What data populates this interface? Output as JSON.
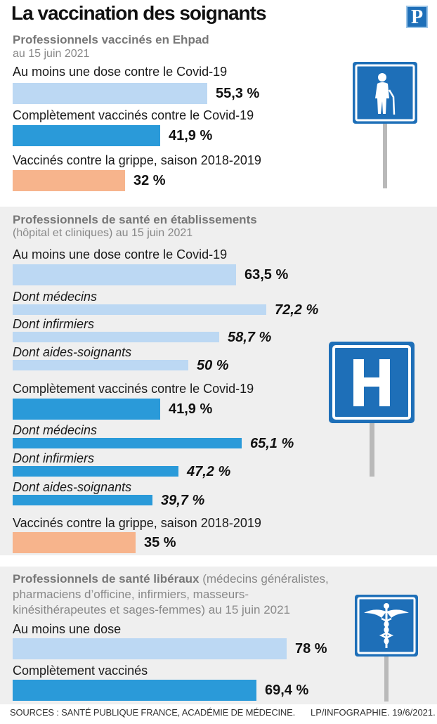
{
  "title": "La vaccination des soignants",
  "logo": "P",
  "colors": {
    "light": "#bcd8f3",
    "dark": "#2a9ad9",
    "orange": "#f7b48c",
    "sign": "#1e6fb8"
  },
  "sections": {
    "ehpad": {
      "title": "Professionnels vaccinés en Ehpad",
      "subtitle": "au 15 juin 2021",
      "icon": "elderly-person-sign-icon",
      "rows": [
        {
          "label": "Au moins une dose contre le Covid-19",
          "value": 55.3,
          "display": "55,3 %"
        },
        {
          "label": "Complètement vaccinés contre le Covid-19",
          "value": 41.9,
          "display": "41,9 %"
        },
        {
          "label": "Vaccinés contre la grippe, saison 2018-2019",
          "value": 32,
          "display": "32 %"
        }
      ]
    },
    "etablissements": {
      "title": "Professionnels de santé en établissements",
      "subtitle": "(hôpital et cliniques) au 15 juin 2021",
      "icon": "hospital-sign-icon",
      "rows": [
        {
          "label": "Au moins une dose contre le Covid-19",
          "value": 63.5,
          "display": "63,5 %"
        },
        {
          "label": "Dont médecins",
          "value": 72.2,
          "display": "72,2 %"
        },
        {
          "label": "Dont infirmiers",
          "value": 58.7,
          "display": "58,7 %"
        },
        {
          "label": "Dont aides-soignants",
          "value": 50,
          "display": "50 %"
        },
        {
          "label": "Complètement vaccinés contre le Covid-19",
          "value": 41.9,
          "display": "41,9 %"
        },
        {
          "label": "Dont médecins",
          "value": 65.1,
          "display": "65,1 %"
        },
        {
          "label": "Dont infirmiers",
          "value": 47.2,
          "display": "47,2 %"
        },
        {
          "label": "Dont aides-soignants",
          "value": 39.7,
          "display": "39,7 %"
        },
        {
          "label": "Vaccinés contre la grippe, saison 2018-2019",
          "value": 35,
          "display": "35 %"
        }
      ]
    },
    "liberaux": {
      "title_bold": "Professionnels de santé libéraux",
      "title_rest": "(médecins généralistes,",
      "line2": "pharmaciens d’officine, infirmiers, masseurs-",
      "line3": "kinésithérapeutes et sages-femmes) au 15 juin 2021",
      "icon": "caduceus-sign-icon",
      "rows": [
        {
          "label": "Au moins une dose",
          "value": 78,
          "display": "78 %"
        },
        {
          "label": "Complètement vaccinés",
          "value": 69.4,
          "display": "69,4 %"
        }
      ]
    }
  },
  "chart_data": {
    "type": "bar",
    "title": "La vaccination des soignants",
    "unit": "%",
    "xlim": [
      0,
      100
    ],
    "groups": [
      {
        "name": "Professionnels vaccinés en Ehpad (au 15 juin 2021)",
        "categories": [
          "Au moins une dose contre le Covid-19",
          "Complètement vaccinés contre le Covid-19",
          "Vaccinés contre la grippe, saison 2018-2019"
        ],
        "values": [
          55.3,
          41.9,
          32
        ]
      },
      {
        "name": "Professionnels de santé en établissements (hôpital et cliniques) au 15 juin 2021",
        "categories": [
          "Au moins une dose contre le Covid-19",
          "Dont médecins",
          "Dont infirmiers",
          "Dont aides-soignants",
          "Complètement vaccinés contre le Covid-19",
          "Dont médecins",
          "Dont infirmiers",
          "Dont aides-soignants",
          "Vaccinés contre la grippe, saison 2018-2019"
        ],
        "values": [
          63.5,
          72.2,
          58.7,
          50,
          41.9,
          65.1,
          47.2,
          39.7,
          35
        ]
      },
      {
        "name": "Professionnels de santé libéraux au 15 juin 2021",
        "categories": [
          "Au moins une dose",
          "Complètement vaccinés"
        ],
        "values": [
          78,
          69.4
        ]
      }
    ]
  },
  "footer": {
    "source": "SOURCES : SANTÉ PUBLIQUE FRANCE, ACADÉMIE DE MÉDECINE.",
    "credit": "LP/INFOGRAPHIE.  19/6/2021."
  }
}
